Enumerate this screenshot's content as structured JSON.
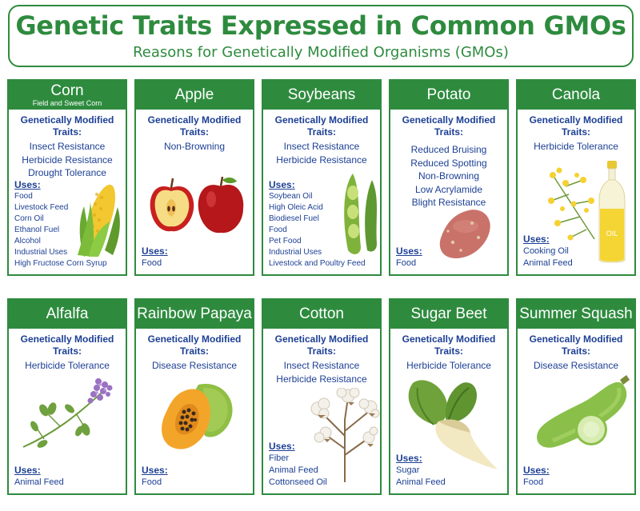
{
  "header": {
    "title": "Genetic Traits Expressed in Common GMOs",
    "subtitle": "Reasons for Genetically Modified Organisms (GMOs)"
  },
  "labels": {
    "traits_heading_line1": "Genetically Modified",
    "traits_heading_line2": "Traits:",
    "uses_heading": "Uses:"
  },
  "colors": {
    "green": "#2e8b3e",
    "text_blue": "#1c3f94"
  },
  "crops": [
    {
      "name": "Corn",
      "subtitle": "Field and Sweet Corn",
      "traits": [
        "Insect Resistance",
        "Herbicide Resistance",
        "Drought Tolerance"
      ],
      "uses": [
        "Food",
        "Livestock Feed",
        "Corn Oil",
        "Ethanol Fuel",
        "Alcohol",
        "Industrial Uses",
        "High Fructose Corn Syrup"
      ],
      "icon": "corn-icon"
    },
    {
      "name": "Apple",
      "traits": [
        "Non-Browning"
      ],
      "uses": [
        "Food"
      ],
      "icon": "apple-icon"
    },
    {
      "name": "Soybeans",
      "traits": [
        "Insect Resistance",
        "Herbicide Resistance"
      ],
      "uses": [
        "Soybean Oil",
        "High Oleic Acid",
        "Biodiesel Fuel",
        "Food",
        "Pet Food",
        "Industrial Uses",
        "Livestock and Poultry Feed"
      ],
      "icon": "soybean-pod-icon"
    },
    {
      "name": "Potato",
      "traits": [
        "Reduced Bruising",
        "Reduced Spotting",
        "Non-Browning",
        "Low Acrylamide",
        "Blight Resistance"
      ],
      "uses": [
        "Food"
      ],
      "icon": "potato-icon"
    },
    {
      "name": "Canola",
      "traits": [
        "Herbicide Tolerance"
      ],
      "uses": [
        "Cooking Oil",
        "Animal Feed"
      ],
      "icon": "canola-oil-icon",
      "bottle_label": "OIL"
    },
    {
      "name": "Alfalfa",
      "traits": [
        "Herbicide Tolerance"
      ],
      "uses": [
        "Animal Feed"
      ],
      "icon": "alfalfa-icon"
    },
    {
      "name": "Rainbow Papaya",
      "traits": [
        "Disease Resistance"
      ],
      "uses": [
        "Food"
      ],
      "icon": "papaya-icon"
    },
    {
      "name": "Cotton",
      "traits": [
        "Insect Resistance",
        "Herbicide Resistance"
      ],
      "uses": [
        "Fiber",
        "Animal Feed",
        "Cottonseed Oil"
      ],
      "icon": "cotton-icon"
    },
    {
      "name": "Sugar Beet",
      "traits": [
        "Herbicide Tolerance"
      ],
      "uses": [
        "Sugar",
        "Animal Feed"
      ],
      "icon": "sugar-beet-icon"
    },
    {
      "name": "Summer Squash",
      "traits": [
        "Disease Resistance"
      ],
      "uses": [
        "Food"
      ],
      "icon": "squash-icon"
    }
  ]
}
